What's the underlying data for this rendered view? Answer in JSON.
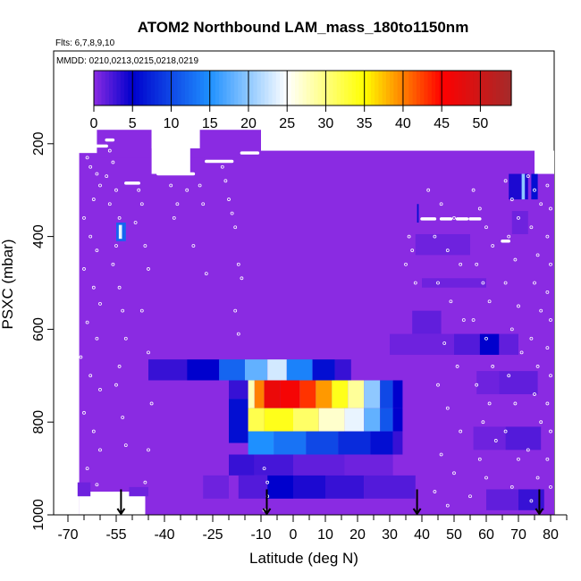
{
  "chart_data": {
    "type": "heatmap",
    "title": "ATOM2 Northbound LAM_mass_180to1150nm",
    "subtitle_flights": "Flts: 6,7,8,9,10",
    "subtitle_dates": "MMDD: 0210,0213,0215,0218,0219",
    "xlabel": "Latitude (deg N)",
    "ylabel": "PSXC (mbar)",
    "xlim": [
      -70,
      85
    ],
    "ylim": [
      1000,
      0
    ],
    "x_ticks": [
      -70,
      -55,
      -40,
      -25,
      -10,
      0,
      10,
      20,
      30,
      40,
      50,
      60,
      70,
      80
    ],
    "x_tick_labels": [
      "-70",
      "-55",
      "-40",
      "-25",
      "-10",
      "0",
      "10",
      "20",
      "30",
      "40",
      "50",
      "60",
      "70",
      "80"
    ],
    "x_minor_ticks": [
      -65,
      -60,
      -50,
      -45,
      -35,
      -30,
      -20,
      -15,
      -5,
      5,
      15,
      25,
      35,
      45,
      55,
      65,
      75,
      85
    ],
    "y_ticks": [
      200,
      400,
      600,
      800,
      1000
    ],
    "y_tick_labels": [
      "200",
      "400",
      "600",
      "800",
      "1000"
    ],
    "colorbar": {
      "min": 0,
      "max": 54,
      "ticks": [
        0,
        5,
        10,
        15,
        20,
        25,
        30,
        35,
        40,
        45,
        50
      ],
      "tick_labels": [
        "0",
        "5",
        "10",
        "15",
        "20",
        "25",
        "30",
        "35",
        "40",
        "45",
        "50"
      ],
      "colors": [
        "#8a2be2",
        "#0000cd",
        "#1e90ff",
        "#ffffff",
        "#ffff00",
        "#ff0000",
        "#a52a2a"
      ],
      "color_positions": [
        0,
        5,
        15,
        25,
        35,
        45,
        54
      ]
    },
    "background_color": "#8a2be2",
    "cells": [
      {
        "x0": -56,
        "x1": -46,
        "p0": 950,
        "p1": 1000,
        "v": 0,
        "fill": "#ffffff"
      },
      {
        "x0": -44,
        "x1": -29,
        "p0": 120,
        "p1": 210,
        "v": 0,
        "fill": "#ffffff"
      },
      {
        "x0": -29,
        "x1": 79,
        "p0": 120,
        "p1": 160,
        "v": 0,
        "fill": "#ffffff"
      },
      {
        "x0": -55,
        "x1": -52,
        "p0": 370,
        "p1": 410,
        "v": 12
      },
      {
        "x0": -54.2,
        "x1": -53.2,
        "p0": 375,
        "p1": 405,
        "v": 24
      },
      {
        "x0": -45,
        "x1": -33,
        "p0": 665,
        "p1": 710,
        "v": 3
      },
      {
        "x0": -33,
        "x1": -23,
        "p0": 665,
        "p1": 710,
        "v": 5
      },
      {
        "x0": -23,
        "x1": -15,
        "p0": 665,
        "p1": 710,
        "v": 12
      },
      {
        "x0": -15,
        "x1": -8,
        "p0": 665,
        "p1": 710,
        "v": 18
      },
      {
        "x0": -8,
        "x1": -2,
        "p0": 665,
        "p1": 710,
        "v": 23
      },
      {
        "x0": -2,
        "x1": 6,
        "p0": 665,
        "p1": 710,
        "v": 14
      },
      {
        "x0": 6,
        "x1": 13,
        "p0": 665,
        "p1": 710,
        "v": 6
      },
      {
        "x0": 13,
        "x1": 18,
        "p0": 665,
        "p1": 710,
        "v": 3
      },
      {
        "x0": -20,
        "x1": -14,
        "p0": 710,
        "p1": 750,
        "v": 3
      },
      {
        "x0": -20,
        "x1": -14,
        "p0": 750,
        "p1": 845,
        "v": 6
      },
      {
        "x0": -14,
        "x1": -12,
        "p0": 710,
        "p1": 770,
        "v": 28
      },
      {
        "x0": -12,
        "x1": -9,
        "p0": 710,
        "p1": 770,
        "v": 40
      },
      {
        "x0": -9,
        "x1": -4,
        "p0": 710,
        "p1": 770,
        "v": 47
      },
      {
        "x0": -4,
        "x1": 2,
        "p0": 710,
        "p1": 770,
        "v": 46
      },
      {
        "x0": 2,
        "x1": 7,
        "p0": 710,
        "p1": 770,
        "v": 43
      },
      {
        "x0": 7,
        "x1": 12,
        "p0": 710,
        "p1": 770,
        "v": 39
      },
      {
        "x0": 12,
        "x1": 17,
        "p0": 710,
        "p1": 770,
        "v": 34
      },
      {
        "x0": 17,
        "x1": 22,
        "p0": 710,
        "p1": 770,
        "v": 29
      },
      {
        "x0": 22,
        "x1": 27,
        "p0": 710,
        "p1": 770,
        "v": 20
      },
      {
        "x0": 27,
        "x1": 31,
        "p0": 710,
        "p1": 770,
        "v": 10
      },
      {
        "x0": 31,
        "x1": 34,
        "p0": 710,
        "p1": 770,
        "v": 5
      },
      {
        "x0": -14,
        "x1": -9,
        "p0": 770,
        "p1": 820,
        "v": 32
      },
      {
        "x0": -9,
        "x1": 0,
        "p0": 770,
        "p1": 820,
        "v": 34
      },
      {
        "x0": 0,
        "x1": 8,
        "p0": 770,
        "p1": 820,
        "v": 31
      },
      {
        "x0": 8,
        "x1": 16,
        "p0": 770,
        "p1": 820,
        "v": 27
      },
      {
        "x0": 16,
        "x1": 22,
        "p0": 770,
        "p1": 820,
        "v": 24
      },
      {
        "x0": 22,
        "x1": 27,
        "p0": 770,
        "p1": 820,
        "v": 18
      },
      {
        "x0": 27,
        "x1": 31,
        "p0": 770,
        "p1": 820,
        "v": 11
      },
      {
        "x0": 31,
        "x1": 34,
        "p0": 770,
        "p1": 820,
        "v": 5
      },
      {
        "x0": -14,
        "x1": -6,
        "p0": 820,
        "p1": 870,
        "v": 15
      },
      {
        "x0": -6,
        "x1": 4,
        "p0": 820,
        "p1": 870,
        "v": 13
      },
      {
        "x0": 4,
        "x1": 14,
        "p0": 820,
        "p1": 870,
        "v": 10
      },
      {
        "x0": 14,
        "x1": 24,
        "p0": 820,
        "p1": 870,
        "v": 8
      },
      {
        "x0": 24,
        "x1": 31,
        "p0": 820,
        "p1": 870,
        "v": 6
      },
      {
        "x0": 31,
        "x1": 34,
        "p0": 820,
        "p1": 870,
        "v": 3
      },
      {
        "x0": -20,
        "x1": -12,
        "p0": 870,
        "p1": 915,
        "v": 3
      },
      {
        "x0": -12,
        "x1": 0,
        "p0": 870,
        "p1": 915,
        "v": 2.5
      },
      {
        "x0": 0,
        "x1": 16,
        "p0": 870,
        "p1": 915,
        "v": 1.5
      },
      {
        "x0": 16,
        "x1": 31,
        "p0": 870,
        "p1": 915,
        "v": 1
      },
      {
        "x0": -17,
        "x1": -8,
        "p0": 915,
        "p1": 965,
        "v": 2
      },
      {
        "x0": -8,
        "x1": 0,
        "p0": 915,
        "p1": 965,
        "v": 5
      },
      {
        "x0": 0,
        "x1": 10,
        "p0": 915,
        "p1": 965,
        "v": 4
      },
      {
        "x0": 10,
        "x1": 22,
        "p0": 915,
        "p1": 965,
        "v": 3
      },
      {
        "x0": 22,
        "x1": 38,
        "p0": 915,
        "p1": 965,
        "v": 2
      },
      {
        "x0": -28,
        "x1": -20,
        "p0": 915,
        "p1": 965,
        "v": 1
      },
      {
        "x0": 37,
        "x1": 46,
        "p0": 560,
        "p1": 610,
        "v": 1.5
      },
      {
        "x0": 30,
        "x1": 50,
        "p0": 610,
        "p1": 655,
        "v": 1
      },
      {
        "x0": 50,
        "x1": 58,
        "p0": 610,
        "p1": 655,
        "v": 2
      },
      {
        "x0": 58,
        "x1": 64,
        "p0": 610,
        "p1": 655,
        "v": 5
      },
      {
        "x0": 64,
        "x1": 70,
        "p0": 610,
        "p1": 655,
        "v": 1.5
      },
      {
        "x0": 38,
        "x1": 55,
        "p0": 395,
        "p1": 440,
        "v": 1
      },
      {
        "x0": 40,
        "x1": 60,
        "p0": 490,
        "p1": 510,
        "v": 1
      },
      {
        "x0": 57,
        "x1": 64,
        "p0": 690,
        "p1": 740,
        "v": 1
      },
      {
        "x0": 64,
        "x1": 76,
        "p0": 690,
        "p1": 740,
        "v": 1.5
      },
      {
        "x0": 56,
        "x1": 66,
        "p0": 810,
        "p1": 860,
        "v": 1
      },
      {
        "x0": 66,
        "x1": 77,
        "p0": 810,
        "p1": 860,
        "v": 2
      },
      {
        "x0": 60,
        "x1": 70,
        "p0": 945,
        "p1": 990,
        "v": 1.5
      },
      {
        "x0": 70,
        "x1": 78,
        "p0": 945,
        "p1": 990,
        "v": 3
      },
      {
        "x0": 67,
        "x1": 73,
        "p0": 265,
        "p1": 320,
        "v": 4
      },
      {
        "x0": 71,
        "x1": 72,
        "p0": 265,
        "p1": 320,
        "v": 20
      },
      {
        "x0": 74,
        "x1": 76,
        "p0": 265,
        "p1": 320,
        "v": 6
      },
      {
        "x0": 68,
        "x1": 73,
        "p0": 345,
        "p1": 395,
        "v": 1
      },
      {
        "x0": 38.5,
        "x1": 39,
        "p0": 330,
        "p1": 370,
        "v": 6
      },
      {
        "x0": -51,
        "x1": -45,
        "p0": 940,
        "p1": 960,
        "v": 1
      },
      {
        "x0": -67,
        "x1": -63,
        "p0": 930,
        "p1": 960,
        "v": 1
      }
    ],
    "flight_track_white": [
      {
        "x0": -62,
        "x1": -58,
        "p": 205
      },
      {
        "x0": -58,
        "x1": -56,
        "p": 192
      },
      {
        "x0": -52,
        "x1": -48,
        "p": 285
      },
      {
        "x0": -42,
        "x1": -31,
        "p": 265
      },
      {
        "x0": -27,
        "x1": -19,
        "p": 238
      },
      {
        "x0": -16,
        "x1": -11,
        "p": 220
      },
      {
        "x0": 40,
        "x1": 44,
        "p": 362
      },
      {
        "x0": 46,
        "x1": 49,
        "p": 362
      },
      {
        "x0": 51,
        "x1": 54,
        "p": 362
      },
      {
        "x0": 55,
        "x1": 58,
        "p": 362
      },
      {
        "x0": 65,
        "x1": 67,
        "p": 410
      }
    ],
    "arrows_x": [
      -53.5,
      -8.2,
      38.5,
      76.5
    ],
    "sample_points": [
      [
        -66,
        210
      ],
      [
        -64,
        230
      ],
      [
        -63,
        250
      ],
      [
        -61,
        265
      ],
      [
        -60,
        290
      ],
      [
        -62,
        320
      ],
      [
        -65,
        360
      ],
      [
        -63,
        400
      ],
      [
        -61,
        430
      ],
      [
        -65,
        470
      ],
      [
        -62,
        510
      ],
      [
        -60,
        545
      ],
      [
        -64,
        585
      ],
      [
        -61,
        620
      ],
      [
        -66,
        660
      ],
      [
        -63,
        700
      ],
      [
        -60,
        730
      ],
      [
        -65,
        780
      ],
      [
        -62,
        820
      ],
      [
        -60,
        860
      ],
      [
        -64,
        900
      ],
      [
        -61,
        935
      ],
      [
        -57,
        215
      ],
      [
        -56,
        240
      ],
      [
        -58,
        270
      ],
      [
        -55,
        300
      ],
      [
        -57,
        330
      ],
      [
        -54,
        360
      ],
      [
        -55,
        420
      ],
      [
        -56,
        460
      ],
      [
        -54,
        510
      ],
      [
        -53,
        560
      ],
      [
        -52,
        620
      ],
      [
        -54,
        680
      ],
      [
        -55,
        720
      ],
      [
        -53,
        790
      ],
      [
        -52,
        850
      ],
      [
        -48,
        300
      ],
      [
        -47,
        330
      ],
      [
        -49,
        370
      ],
      [
        -46,
        420
      ],
      [
        -45,
        470
      ],
      [
        -47,
        560
      ],
      [
        -45,
        650
      ],
      [
        -44,
        760
      ],
      [
        -45,
        860
      ],
      [
        -46,
        930
      ],
      [
        -38,
        290
      ],
      [
        -36,
        330
      ],
      [
        -37,
        360
      ],
      [
        -33,
        300
      ],
      [
        -29,
        290
      ],
      [
        -28,
        330
      ],
      [
        -31,
        420
      ],
      [
        -27,
        480
      ],
      [
        -22,
        250
      ],
      [
        -21,
        280
      ],
      [
        -20,
        320
      ],
      [
        -19,
        350
      ],
      [
        -18,
        380
      ],
      [
        -17,
        460
      ],
      [
        -16,
        490
      ],
      [
        -18,
        560
      ],
      [
        -17,
        610
      ],
      [
        -9,
        900
      ],
      [
        -8,
        930
      ],
      [
        -8,
        960
      ],
      [
        -9,
        990
      ],
      [
        36,
        400
      ],
      [
        37,
        430
      ],
      [
        35,
        460
      ],
      [
        38,
        500
      ],
      [
        42,
        300
      ],
      [
        46,
        330
      ],
      [
        50,
        360
      ],
      [
        44,
        400
      ],
      [
        48,
        430
      ],
      [
        52,
        460
      ],
      [
        45,
        500
      ],
      [
        49,
        540
      ],
      [
        53,
        580
      ],
      [
        47,
        630
      ],
      [
        51,
        680
      ],
      [
        45,
        720
      ],
      [
        48,
        770
      ],
      [
        52,
        820
      ],
      [
        46,
        870
      ],
      [
        50,
        910
      ],
      [
        44,
        950
      ],
      [
        48,
        980
      ],
      [
        56,
        300
      ],
      [
        58,
        340
      ],
      [
        60,
        380
      ],
      [
        62,
        420
      ],
      [
        57,
        460
      ],
      [
        59,
        500
      ],
      [
        61,
        540
      ],
      [
        56,
        580
      ],
      [
        60,
        620
      ],
      [
        62,
        680
      ],
      [
        57,
        720
      ],
      [
        61,
        760
      ],
      [
        59,
        800
      ],
      [
        63,
        840
      ],
      [
        58,
        880
      ],
      [
        60,
        920
      ],
      [
        55,
        960
      ],
      [
        66,
        280
      ],
      [
        68,
        320
      ],
      [
        70,
        360
      ],
      [
        67,
        400
      ],
      [
        69,
        450
      ],
      [
        66,
        500
      ],
      [
        70,
        550
      ],
      [
        68,
        600
      ],
      [
        71,
        650
      ],
      [
        67,
        700
      ],
      [
        69,
        760
      ],
      [
        66,
        820
      ],
      [
        70,
        880
      ],
      [
        68,
        940
      ],
      [
        73,
        270
      ],
      [
        75,
        300
      ],
      [
        77,
        330
      ],
      [
        74,
        380
      ],
      [
        76,
        440
      ],
      [
        75,
        500
      ],
      [
        77,
        560
      ],
      [
        74,
        620
      ],
      [
        76,
        680
      ],
      [
        75,
        740
      ],
      [
        77,
        800
      ],
      [
        73,
        860
      ],
      [
        76,
        920
      ],
      [
        74,
        970
      ],
      [
        79,
        290
      ],
      [
        80,
        340
      ],
      [
        79,
        400
      ],
      [
        80,
        460
      ],
      [
        79,
        520
      ],
      [
        80,
        580
      ],
      [
        79,
        640
      ],
      [
        80,
        700
      ],
      [
        79,
        760
      ],
      [
        80,
        820
      ],
      [
        79,
        880
      ],
      [
        80,
        940
      ]
    ]
  }
}
